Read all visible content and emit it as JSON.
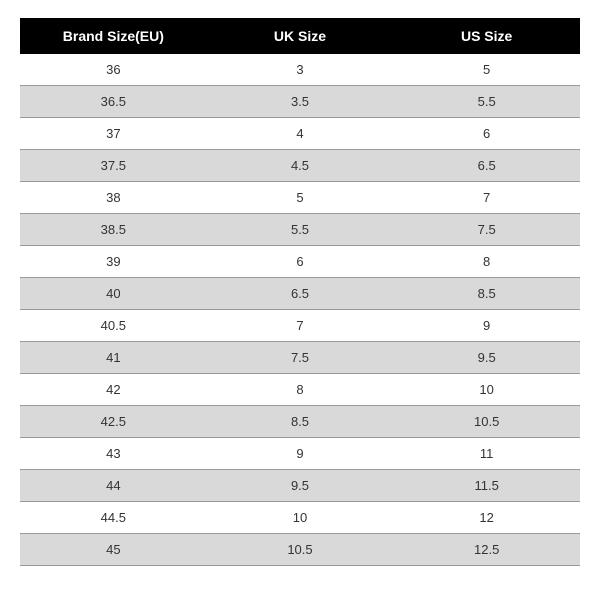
{
  "size_table": {
    "type": "table",
    "header_bg": "#000000",
    "header_text_color": "#ffffff",
    "row_odd_bg": "#ffffff",
    "row_even_bg": "#d9d9d9",
    "border_color": "#999999",
    "header_fontsize": 14,
    "cell_fontsize": 13,
    "columns": [
      {
        "label": "Brand Size(EU)",
        "align": "center"
      },
      {
        "label": "UK Size",
        "align": "center"
      },
      {
        "label": "US Size",
        "align": "center"
      }
    ],
    "rows": [
      [
        "36",
        "3",
        "5"
      ],
      [
        "36.5",
        "3.5",
        "5.5"
      ],
      [
        "37",
        "4",
        "6"
      ],
      [
        "37.5",
        "4.5",
        "6.5"
      ],
      [
        "38",
        "5",
        "7"
      ],
      [
        "38.5",
        "5.5",
        "7.5"
      ],
      [
        "39",
        "6",
        "8"
      ],
      [
        "40",
        "6.5",
        "8.5"
      ],
      [
        "40.5",
        "7",
        "9"
      ],
      [
        "41",
        "7.5",
        "9.5"
      ],
      [
        "42",
        "8",
        "10"
      ],
      [
        "42.5",
        "8.5",
        "10.5"
      ],
      [
        "43",
        "9",
        "11"
      ],
      [
        "44",
        "9.5",
        "11.5"
      ],
      [
        "44.5",
        "10",
        "12"
      ],
      [
        "45",
        "10.5",
        "12.5"
      ]
    ]
  }
}
